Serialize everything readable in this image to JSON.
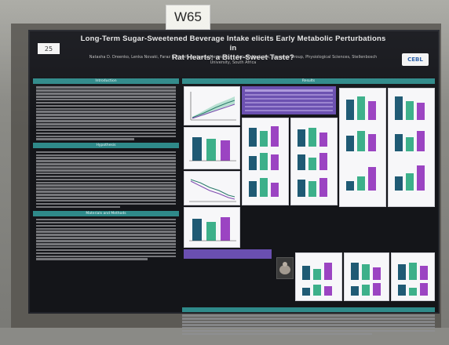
{
  "board_tag": "W65",
  "poster": {
    "id": "25",
    "title_line1": "Long-Term Sugar-Sweetened Beverage Intake elicits Early Metabolic Perturbations in",
    "title_line2": "Rat Hearts: a Bitter-Sweet Taste?",
    "authors": "Natasha D. Dreenko, Lenka Novaki, Faraz E. Haleh, Andres L. Neumann, ... Faculty Medicine, Research Group, Physiological Sciences, Stellenbosch University, South Africa",
    "logo_text": "CEBL",
    "sections": {
      "introduction": "Introduction",
      "hypothesis": "Hypothesis",
      "methods": "Materials and Methods",
      "results": "Results",
      "conclusions": "Conclusions"
    }
  },
  "colors": {
    "teal": "#2f8a8a",
    "bar_dark": "#1f5a74",
    "bar_green": "#3db08a",
    "bar_purple": "#9b44c2",
    "panel_purple": "#6a4fb0"
  }
}
